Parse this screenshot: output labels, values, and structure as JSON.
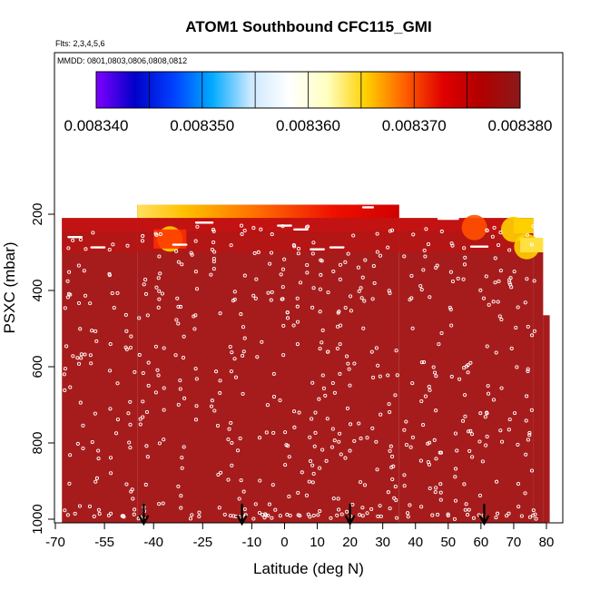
{
  "chart_data": {
    "type": "heatmap",
    "title": "ATOM1 Southbound CFC115_GMI",
    "notes": {
      "flights": "Flts: 2,3,4,5,6",
      "dates": "MMDD: 0801,0803,0806,0808,0812"
    },
    "xlabel": "Latitude (deg N)",
    "ylabel": "PSXC (mbar)",
    "xlim": [
      -70,
      82
    ],
    "ylim": [
      1010,
      80
    ],
    "y_inverted": true,
    "x_ticks": [
      -70,
      -55,
      -40,
      -25,
      -10,
      0,
      10,
      20,
      30,
      40,
      50,
      60,
      70,
      80
    ],
    "x_tick_labels": [
      "-70",
      "-55",
      "-40",
      "-25",
      "-10",
      "0",
      "10",
      "20",
      "30",
      "40",
      "50",
      "60",
      "70",
      "80"
    ],
    "y_ticks": [
      200,
      400,
      600,
      800,
      1000
    ],
    "y_tick_labels": [
      "200",
      "400",
      "600",
      "800",
      "1000"
    ],
    "colorbar": {
      "range": [
        0.00834,
        0.00838
      ],
      "tick_values": [
        0.00834,
        0.00835,
        0.00836,
        0.00837,
        0.00838
      ],
      "tick_labels": [
        "0.008340",
        "0.008350",
        "0.008360",
        "0.008370",
        "0.008380"
      ],
      "colors": [
        "#7f00ff",
        "#0000c8",
        "#0040ff",
        "#00aaff",
        "#cce8ff",
        "#ffffff",
        "#ffffc0",
        "#ffd000",
        "#ff6000",
        "#e00000",
        "#b00000",
        "#8b1a1a"
      ]
    },
    "background_value": 0.00838,
    "field_color": "#a61c1c",
    "domain_segments": [
      {
        "lat_min": -68,
        "lat_max": -45,
        "p_top": 210
      },
      {
        "lat_min": -45,
        "lat_max": 35,
        "p_top": 175
      },
      {
        "lat_min": 35,
        "lat_max": 76,
        "p_top": 210
      },
      {
        "lat_min": 76,
        "lat_max": 79,
        "p_top": 300
      },
      {
        "lat_min": 79,
        "lat_max": 81,
        "p_top": 465
      }
    ],
    "high_region": {
      "lat_min": -45,
      "lat_max": 35,
      "p_top": 175,
      "p_bottom": 210,
      "values": [
        0.00837,
        0.008375,
        0.00838
      ]
    },
    "upper_patches": [
      {
        "lat": -35,
        "p": 265,
        "value": 0.00837
      },
      {
        "lat": 70,
        "p": 240,
        "value": 0.008372
      },
      {
        "lat": 74,
        "p": 285,
        "value": 0.008368
      },
      {
        "lat": 58,
        "p": 235,
        "value": 0.008376
      }
    ],
    "arrows_lat": [
      -43,
      -13,
      20,
      61
    ],
    "sample_points": "white open circles marking measurement locations"
  }
}
